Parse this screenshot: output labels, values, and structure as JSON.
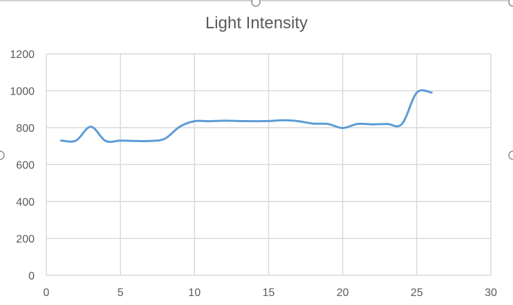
{
  "chart_data": {
    "type": "line",
    "title": "Light Intensity",
    "xlabel": "",
    "ylabel": "",
    "xlim": [
      0,
      30
    ],
    "ylim": [
      0,
      1200
    ],
    "xticks": [
      0,
      5,
      10,
      15,
      20,
      25,
      30
    ],
    "yticks": [
      0,
      200,
      400,
      600,
      800,
      1000,
      1200
    ],
    "grid": true,
    "legend": "none",
    "smooth": true,
    "series": [
      {
        "color": "#5B9BD5",
        "x": [
          1,
          2,
          3,
          4,
          5,
          6,
          7,
          8,
          9,
          10,
          11,
          12,
          13,
          14,
          15,
          16,
          17,
          18,
          19,
          20,
          21,
          22,
          23,
          24,
          25,
          26
        ],
        "y": [
          730,
          730,
          805,
          728,
          730,
          728,
          728,
          740,
          805,
          835,
          835,
          838,
          836,
          835,
          836,
          840,
          835,
          822,
          820,
          798,
          820,
          818,
          820,
          820,
          990,
          990
        ]
      }
    ]
  }
}
